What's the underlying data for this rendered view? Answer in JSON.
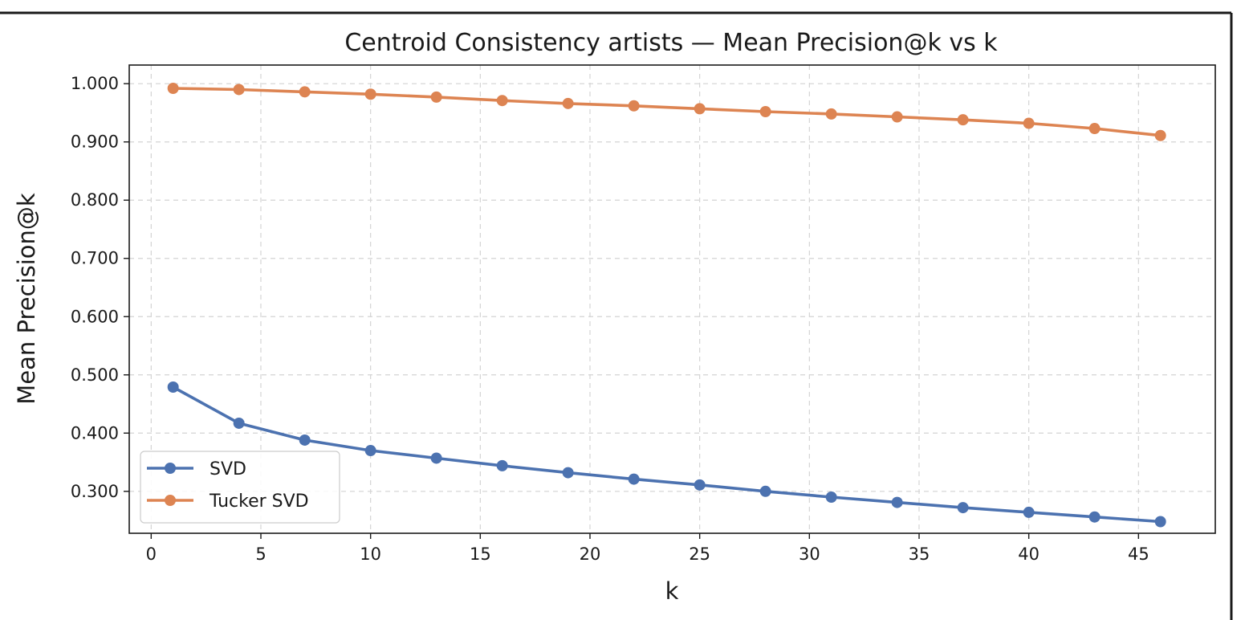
{
  "chart_data": {
    "type": "line",
    "title": "Centroid Consistency artists — Mean Precision@k vs k",
    "xlabel": "k",
    "ylabel": "Mean Precision@k",
    "xlim": [
      -1,
      48.5
    ],
    "ylim": [
      0.228,
      1.032
    ],
    "xticks": [
      0,
      5,
      10,
      15,
      20,
      25,
      30,
      35,
      40,
      45
    ],
    "xtick_labels": [
      "0",
      "5",
      "10",
      "15",
      "20",
      "25",
      "30",
      "35",
      "40",
      "45"
    ],
    "yticks": [
      0.3,
      0.4,
      0.5,
      0.6,
      0.7,
      0.8,
      0.9,
      1.0
    ],
    "ytick_labels": [
      "0.300",
      "0.400",
      "0.500",
      "0.600",
      "0.700",
      "0.800",
      "0.900",
      "1.000"
    ],
    "grid": true,
    "legend_position": "lower-left",
    "x": [
      1,
      4,
      7,
      10,
      13,
      16,
      19,
      22,
      25,
      28,
      31,
      34,
      37,
      40,
      43,
      46
    ],
    "series": [
      {
        "name": "SVD",
        "color": "#4c72b0",
        "values": [
          0.479,
          0.417,
          0.388,
          0.37,
          0.357,
          0.344,
          0.332,
          0.321,
          0.311,
          0.3,
          0.29,
          0.281,
          0.272,
          0.264,
          0.256,
          0.248
        ]
      },
      {
        "name": "Tucker SVD",
        "color": "#dd8452",
        "values": [
          0.992,
          0.99,
          0.986,
          0.982,
          0.977,
          0.971,
          0.966,
          0.962,
          0.957,
          0.952,
          0.948,
          0.943,
          0.938,
          0.932,
          0.923,
          0.911
        ]
      }
    ]
  }
}
